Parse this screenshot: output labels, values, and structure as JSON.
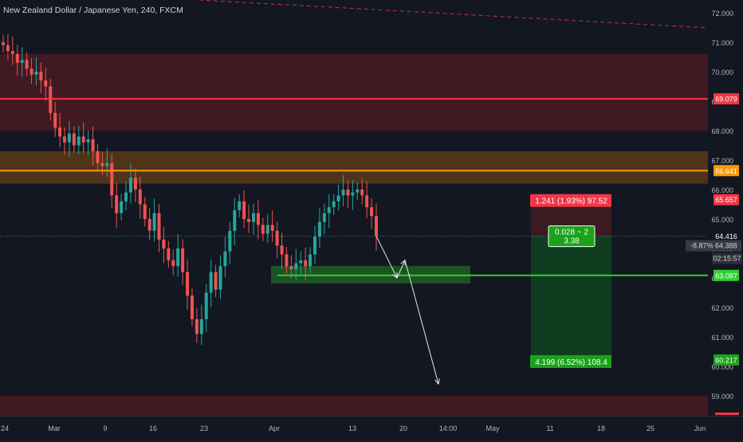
{
  "header": {
    "symbol_title": "New Zealand Dollar / Japanese Yen, 240, FXCM"
  },
  "colors": {
    "background": "#131722",
    "bull_candle": "#26a69a",
    "bear_candle": "#ef5350",
    "resistance_line": "#f23645",
    "orange_line": "#ff9800",
    "support_line": "#2fd02f",
    "resistance_zone": "#4a1a22",
    "orange_zone": "#5a3a17",
    "support_zone": "#1e5a24",
    "stop_zone": "#3c1a22",
    "target_zone": "#103d1f"
  },
  "chart_data": {
    "type": "candlestick",
    "x_tick_labels": [
      "24",
      "Mar",
      "9",
      "16",
      "23",
      "Apr",
      "13",
      "20",
      "14:00",
      "May",
      "11",
      "18",
      "25",
      "Jun"
    ],
    "y_tick_labels": [
      "72.000",
      "71.000",
      "70.000",
      "69.000",
      "68.000",
      "67.000",
      "66.000",
      "65.000",
      "64.000",
      "63.000",
      "62.000",
      "61.000",
      "60.000",
      "59.000"
    ],
    "ylim": [
      58.7,
      72.2
    ],
    "closes": [
      70.9,
      70.7,
      70.6,
      70.3,
      70.4,
      70.1,
      69.9,
      70.0,
      69.7,
      69.5,
      68.6,
      68.1,
      67.8,
      67.6,
      67.9,
      67.5,
      67.8,
      67.6,
      67.7,
      67.3,
      66.9,
      66.8,
      66.9,
      65.8,
      65.2,
      65.6,
      65.9,
      66.4,
      66.0,
      65.5,
      65.0,
      64.6,
      65.2,
      64.3,
      64.0,
      63.6,
      63.4,
      64.0,
      63.2,
      62.4,
      61.6,
      61.1,
      61.6,
      62.5,
      63.2,
      62.6,
      63.4,
      63.9,
      64.6,
      65.3,
      65.6,
      65.0,
      64.9,
      65.2,
      64.8,
      64.5,
      64.8,
      64.6,
      64.1,
      63.8,
      63.4,
      63.3,
      63.5,
      63.6,
      63.4,
      63.8,
      64.4,
      64.9,
      65.2,
      65.4,
      65.6,
      65.8,
      66.0,
      65.8,
      65.9,
      66.0,
      65.8,
      65.4,
      65.1,
      64.42
    ],
    "last_close": 64.416,
    "price_labels": {
      "resistance": "69.079",
      "orange": "66.641",
      "stop": "65.657",
      "last": "64.416",
      "crosshair": "64.388",
      "crosshair_pct": "-8.87%",
      "countdown": "02:15:57",
      "support": "63.087",
      "target": "60.217"
    },
    "levels": {
      "resistance_zone": [
        68.0,
        70.6
      ],
      "resistance": 69.079,
      "orange_zone": [
        66.2,
        67.3
      ],
      "orange": 66.641,
      "support_zone": [
        62.7,
        63.3
      ],
      "support": 63.087,
      "bottom_zone": [
        58.7,
        59.0
      ]
    },
    "position": {
      "entry": 64.416,
      "stop": 65.657,
      "target": 60.217,
      "stop_label": "1.241 (1.93%) 97.52",
      "target_label": "4.199 (6.52%) 108.4",
      "ratio_label_line1": "0.028 ~ 2",
      "ratio_label_line2": "3.38"
    },
    "projection_path": [
      [
        64.42,
        0
      ],
      [
        63.0,
        1
      ],
      [
        63.6,
        2
      ],
      [
        59.4,
        3
      ]
    ]
  }
}
